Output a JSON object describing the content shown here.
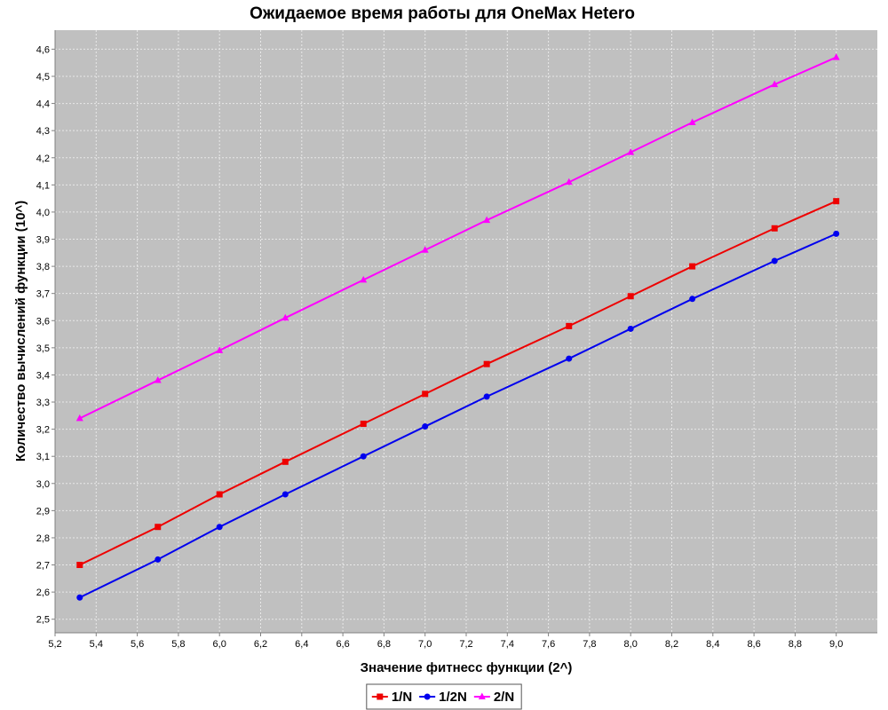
{
  "chart_data": {
    "type": "line",
    "title": "Ожидаемое время работы для OneMax Hetero",
    "xlabel": "Значение фитнесс функции (2^)",
    "ylabel": "Количество вычислений функции (10^)",
    "xlim": [
      5.2,
      9.2
    ],
    "ylim": [
      2.45,
      4.67
    ],
    "x_ticks": [
      "5,2",
      "5,4",
      "5,6",
      "5,8",
      "6,0",
      "6,2",
      "6,4",
      "6,6",
      "6,8",
      "7,0",
      "7,2",
      "7,4",
      "7,6",
      "7,8",
      "8,0",
      "8,2",
      "8,4",
      "8,6",
      "8,8",
      "9,0"
    ],
    "y_ticks": [
      "2,5",
      "2,6",
      "2,7",
      "2,8",
      "2,9",
      "3,0",
      "3,1",
      "3,2",
      "3,3",
      "3,4",
      "3,5",
      "3,6",
      "3,7",
      "3,8",
      "3,9",
      "4,0",
      "4,1",
      "4,2",
      "4,3",
      "4,4",
      "4,5",
      "4,6"
    ],
    "grid": true,
    "legend_position": "bottom",
    "x": [
      5.32,
      5.7,
      6.0,
      6.32,
      6.7,
      7.0,
      7.3,
      7.7,
      8.0,
      8.3,
      8.7,
      9.0
    ],
    "series": [
      {
        "name": "1/N",
        "color": "#ee0000",
        "marker": "square",
        "values": [
          2.7,
          2.84,
          2.96,
          3.08,
          3.22,
          3.33,
          3.44,
          3.58,
          3.69,
          3.8,
          3.94,
          4.04
        ]
      },
      {
        "name": "1/2N",
        "color": "#0000ee",
        "marker": "circle",
        "values": [
          2.58,
          2.72,
          2.84,
          2.96,
          3.1,
          3.21,
          3.32,
          3.46,
          3.57,
          3.68,
          3.82,
          3.92
        ]
      },
      {
        "name": "2/N",
        "color": "#ff00ff",
        "marker": "triangle",
        "values": [
          3.24,
          3.38,
          3.49,
          3.61,
          3.75,
          3.86,
          3.97,
          4.11,
          4.22,
          4.33,
          4.47,
          4.57
        ]
      }
    ],
    "colors": {
      "plot_background": "#c0c0c0",
      "gridline": "#e8e8e8",
      "axis": "#808080"
    }
  }
}
